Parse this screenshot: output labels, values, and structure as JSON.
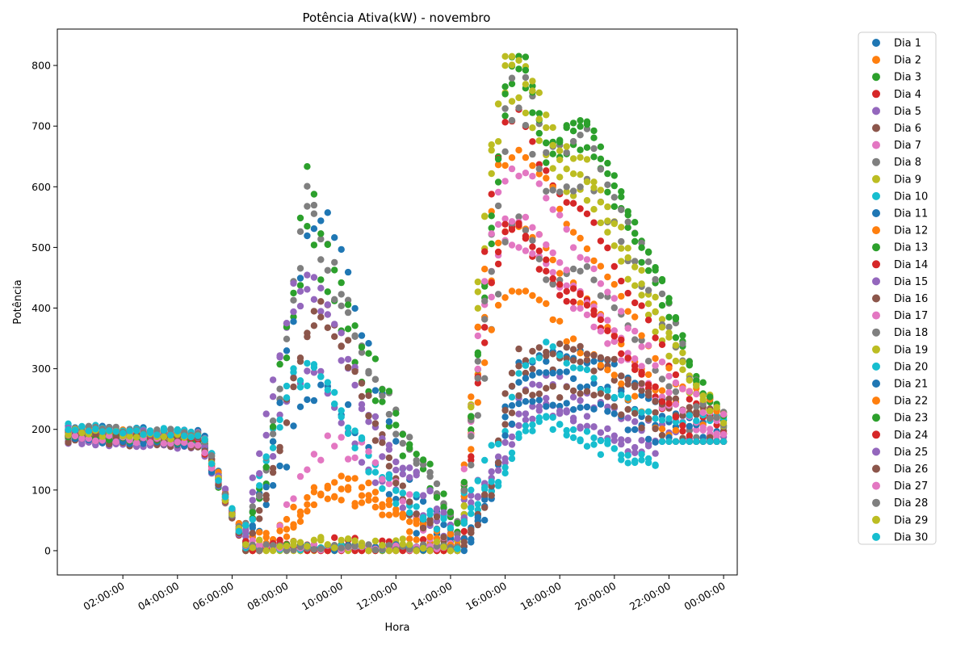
{
  "chart_data": {
    "type": "scatter",
    "title": "Potência Ativa(kW) - novembro",
    "xlabel": "Hora",
    "ylabel": "Potência",
    "x_range_hours": [
      -0.4,
      24.5
    ],
    "ylim": [
      -40,
      860
    ],
    "y_ticks": [
      0,
      100,
      200,
      300,
      400,
      500,
      600,
      700,
      800
    ],
    "x_ticks": [
      {
        "hour": 2,
        "label": "02:00:00"
      },
      {
        "hour": 4,
        "label": "04:00:00"
      },
      {
        "hour": 6,
        "label": "06:00:00"
      },
      {
        "hour": 8,
        "label": "08:00:00"
      },
      {
        "hour": 10,
        "label": "10:00:00"
      },
      {
        "hour": 12,
        "label": "12:00:00"
      },
      {
        "hour": 14,
        "label": "14:00:00"
      },
      {
        "hour": 16,
        "label": "16:00:00"
      },
      {
        "hour": 18,
        "label": "18:00:00"
      },
      {
        "hour": 20,
        "label": "20:00:00"
      },
      {
        "hour": 22,
        "label": "22:00:00"
      },
      {
        "hour": 24,
        "label": "00:00:00"
      }
    ],
    "grid": false,
    "legend_position": "outside-right-top",
    "series": [
      {
        "name": "Dia 1",
        "color": "#1f77b4"
      },
      {
        "name": "Dia 2",
        "color": "#ff7f0e"
      },
      {
        "name": "Dia 3",
        "color": "#2ca02c"
      },
      {
        "name": "Dia 4",
        "color": "#d62728"
      },
      {
        "name": "Dia 5",
        "color": "#9467bd"
      },
      {
        "name": "Dia 6",
        "color": "#8c564b"
      },
      {
        "name": "Dia 7",
        "color": "#e377c2"
      },
      {
        "name": "Dia 8",
        "color": "#7f7f7f"
      },
      {
        "name": "Dia 9",
        "color": "#bcbd22"
      },
      {
        "name": "Dia 10",
        "color": "#17becf"
      },
      {
        "name": "Dia 11",
        "color": "#1f77b4"
      },
      {
        "name": "Dia 12",
        "color": "#ff7f0e"
      },
      {
        "name": "Dia 13",
        "color": "#2ca02c"
      },
      {
        "name": "Dia 14",
        "color": "#d62728"
      },
      {
        "name": "Dia 15",
        "color": "#9467bd"
      },
      {
        "name": "Dia 16",
        "color": "#8c564b"
      },
      {
        "name": "Dia 17",
        "color": "#e377c2"
      },
      {
        "name": "Dia 18",
        "color": "#7f7f7f"
      },
      {
        "name": "Dia 19",
        "color": "#bcbd22"
      },
      {
        "name": "Dia 20",
        "color": "#17becf"
      },
      {
        "name": "Dia 21",
        "color": "#1f77b4"
      },
      {
        "name": "Dia 22",
        "color": "#ff7f0e"
      },
      {
        "name": "Dia 23",
        "color": "#2ca02c"
      },
      {
        "name": "Dia 24",
        "color": "#d62728"
      },
      {
        "name": "Dia 25",
        "color": "#9467bd"
      },
      {
        "name": "Dia 26",
        "color": "#8c564b"
      },
      {
        "name": "Dia 27",
        "color": "#e377c2"
      },
      {
        "name": "Dia 28",
        "color": "#7f7f7f"
      },
      {
        "name": "Dia 29",
        "color": "#bcbd22"
      },
      {
        "name": "Dia 30",
        "color": "#17becf"
      }
    ]
  }
}
